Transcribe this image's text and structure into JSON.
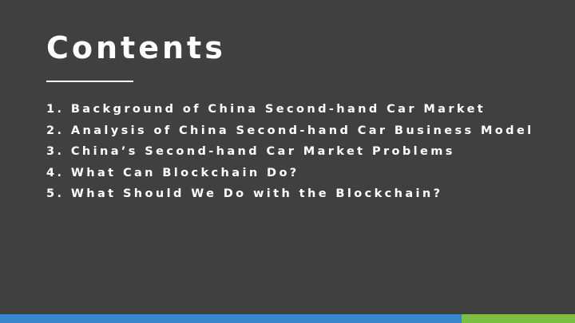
{
  "slide": {
    "title": "Contents",
    "items": [
      {
        "number": "1.",
        "text": "Background of China Second-hand Car Market"
      },
      {
        "number": "2.",
        "text": "Analysis of China Second-hand Car Business Model"
      },
      {
        "number": "3.",
        "text": "China’s Second-hand Car Market Problems"
      },
      {
        "number": "4.",
        "text": "What Can Blockchain Do?"
      },
      {
        "number": "5.",
        "text": "What Should We Do with the Blockchain?"
      }
    ]
  },
  "colors": {
    "background": "#404040",
    "text": "#FFFFFF",
    "footer_blue": "#3A84C9",
    "footer_green": "#7AC143"
  }
}
